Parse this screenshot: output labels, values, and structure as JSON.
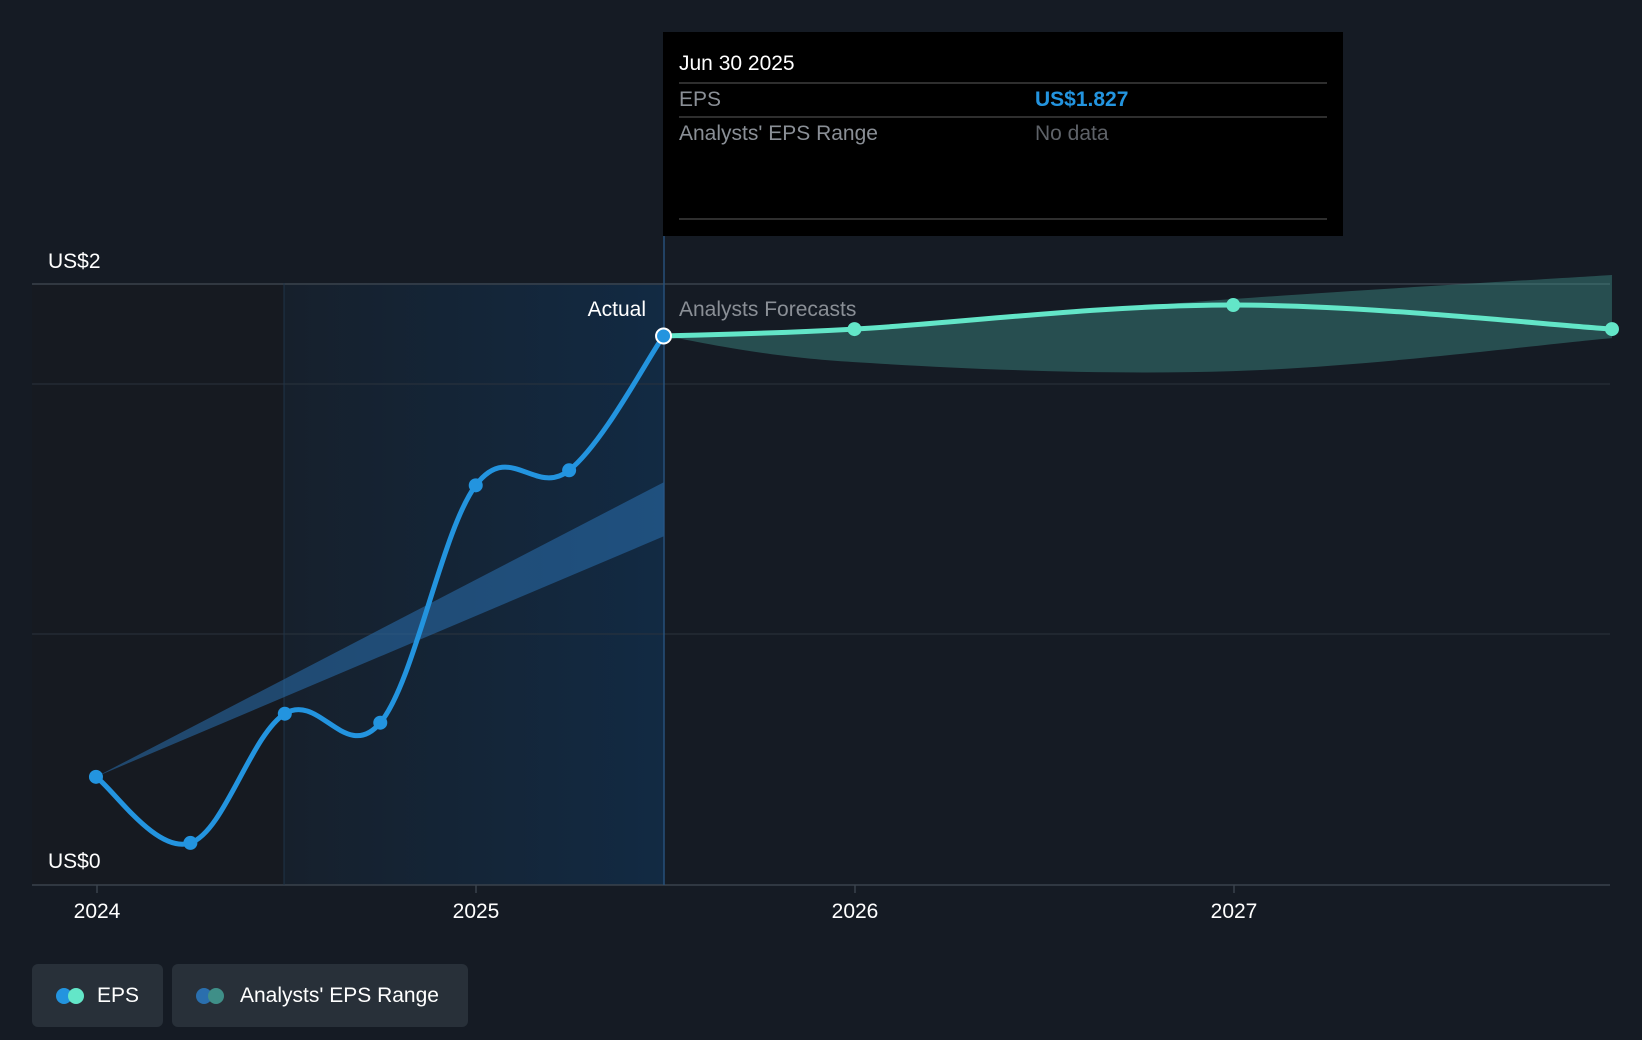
{
  "colors": {
    "background": "#151b24",
    "actual_line": "#2394df",
    "forecast_line": "#63e6c8",
    "actual_range": "#2a6fae",
    "forecast_range": "#3f8f88",
    "tooltip_bg": "#000000",
    "tooltip_value": "#2394df",
    "muted_text": "#8a8f96",
    "legend_bg": "#283039"
  },
  "tooltip": {
    "date": "Jun 30 2025",
    "eps_label": "EPS",
    "eps_value": "US$1.827",
    "range_label": "Analysts' EPS Range",
    "range_value": "No data"
  },
  "labels": {
    "actual": "Actual",
    "forecasts": "Analysts Forecasts",
    "y_top": "US$2",
    "y_bottom": "US$0"
  },
  "legend": [
    {
      "label": "EPS",
      "colors": [
        "#2394df",
        "#63e6c8"
      ]
    },
    {
      "label": "Analysts' EPS Range",
      "colors": [
        "#2a6fae",
        "#3f8f88"
      ]
    }
  ],
  "chart_data": {
    "type": "line",
    "title": "",
    "xlabel": "",
    "ylabel": "",
    "x_ticks": [
      "2024",
      "2025",
      "2026",
      "2027"
    ],
    "ylim": [
      0,
      2
    ],
    "y_ticks": [
      "US$0",
      "US$2"
    ],
    "grid": true,
    "divider_date": "2025-06-30",
    "series": [
      {
        "name": "EPS",
        "kind": "actual",
        "points": [
          {
            "x": "2023-12-31",
            "y": 0.36
          },
          {
            "x": "2024-03-31",
            "y": 0.14
          },
          {
            "x": "2024-06-30",
            "y": 0.57
          },
          {
            "x": "2024-09-30",
            "y": 0.54
          },
          {
            "x": "2024-12-31",
            "y": 1.33
          },
          {
            "x": "2025-03-31",
            "y": 1.38
          },
          {
            "x": "2025-06-30",
            "y": 1.827
          }
        ]
      },
      {
        "name": "EPS",
        "kind": "forecast",
        "points": [
          {
            "x": "2025-06-30",
            "y": 1.827
          },
          {
            "x": "2025-12-31",
            "y": 1.85
          },
          {
            "x": "2026-12-31",
            "y": 1.93
          },
          {
            "x": "2027-12-31",
            "y": 1.85
          }
        ]
      },
      {
        "name": "Analysts' EPS Range",
        "kind": "actual_range",
        "points": [
          {
            "x": "2023-12-31",
            "low": 0.36,
            "high": 0.36
          },
          {
            "x": "2025-06-30",
            "low": 1.16,
            "high": 1.34
          }
        ]
      },
      {
        "name": "Analysts' EPS Range",
        "kind": "forecast_range",
        "points": [
          {
            "x": "2025-06-30",
            "low": 1.827,
            "high": 1.827
          },
          {
            "x": "2025-12-31",
            "low": 1.74,
            "high": 1.85
          },
          {
            "x": "2026-12-31",
            "low": 1.71,
            "high": 1.95
          },
          {
            "x": "2027-12-31",
            "low": 1.82,
            "high": 2.03
          }
        ]
      }
    ]
  }
}
